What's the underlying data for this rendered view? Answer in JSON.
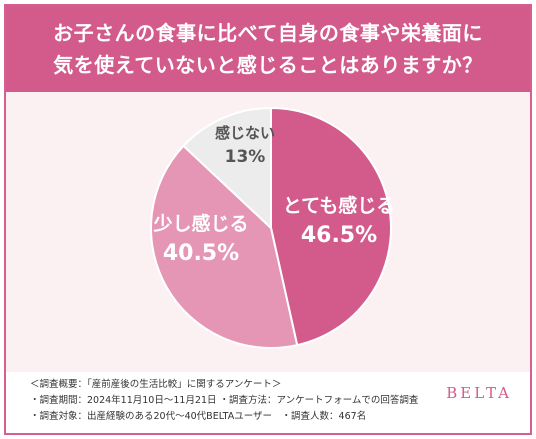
{
  "title": {
    "line1": "お子さんの食事に比べて自身の食事や栄養面に",
    "line2": "気を使えていないと感じることはありますか？"
  },
  "chart_data": {
    "type": "pie",
    "title": "お子さんの食事に比べて自身の食事や栄養面に気を使えていないと感じることはありますか？",
    "slices": [
      {
        "label": "とても感じる",
        "value": 46.5,
        "display": "46.5%",
        "color": "#d35b8b",
        "text_color": "#ffffff"
      },
      {
        "label": "少し感じる",
        "value": 40.5,
        "display": "40.5%",
        "color": "#e596b4",
        "text_color": "#ffffff"
      },
      {
        "label": "感じない",
        "value": 13,
        "display": "13%",
        "color": "#ececec",
        "text_color": "#555555"
      }
    ],
    "start_angle_deg": 0,
    "direction": "clockwise"
  },
  "footer": {
    "notes": [
      "＜調査概要：「産前産後の生活比較」に関するアンケート＞",
      "・調査期間：2024年11月10日〜11月21日 ・調査方法：アンケートフォームでの回答調査",
      "・調査対象：出産経験のある20代〜40代BELTAユーザー　・調査人数：467名"
    ],
    "brand": "BELTA"
  },
  "colors": {
    "header_bg": "#d35b8b",
    "chart_bg": "#fbf1f3",
    "brand": "#d35b8b"
  }
}
